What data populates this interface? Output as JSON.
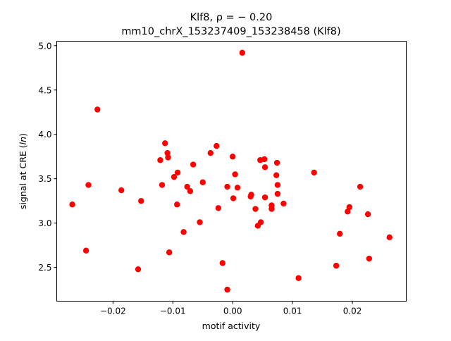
{
  "chart_data": {
    "type": "scatter",
    "title_line1": "Klf8, ρ = − 0.20",
    "title_line2": "mm10_chrX_153237409_153238458 (Klf8)",
    "xlabel": "motif activity",
    "ylabel": "signal at CRE (ln)",
    "xlim": [
      -0.0294,
      0.029
    ],
    "ylim": [
      2.12,
      5.05
    ],
    "xticks": [
      -0.02,
      -0.01,
      0.0,
      0.01,
      0.02
    ],
    "xtick_labels": [
      "−0.02",
      "−0.01",
      "0.00",
      "0.01",
      "0.02"
    ],
    "yticks": [
      2.5,
      3.0,
      3.5,
      4.0,
      4.5,
      5.0
    ],
    "ytick_labels": [
      "2.5",
      "3.0",
      "3.5",
      "4.0",
      "4.5",
      "5.0"
    ],
    "grid": false,
    "marker_color": "#ff0000",
    "points": [
      [
        -0.0268,
        3.21
      ],
      [
        -0.0245,
        2.69
      ],
      [
        -0.0241,
        3.43
      ],
      [
        -0.0226,
        4.28
      ],
      [
        -0.0186,
        3.37
      ],
      [
        -0.0158,
        2.48
      ],
      [
        -0.0153,
        3.25
      ],
      [
        -0.0121,
        3.71
      ],
      [
        -0.0118,
        3.43
      ],
      [
        -0.0113,
        3.9
      ],
      [
        -0.0109,
        3.79
      ],
      [
        -0.0108,
        3.74
      ],
      [
        -0.0106,
        2.67
      ],
      [
        -0.0098,
        3.52
      ],
      [
        -0.0093,
        3.21
      ],
      [
        -0.0092,
        3.57
      ],
      [
        -0.0082,
        2.9
      ],
      [
        -0.0076,
        3.41
      ],
      [
        -0.0071,
        3.36
      ],
      [
        -0.0066,
        3.66
      ],
      [
        -0.0055,
        3.01
      ],
      [
        -0.005,
        3.46
      ],
      [
        -0.0037,
        3.79
      ],
      [
        -0.0027,
        3.87
      ],
      [
        -0.0024,
        3.17
      ],
      [
        -0.0017,
        2.55
      ],
      [
        -0.0009,
        2.25
      ],
      [
        -0.0009,
        3.41
      ],
      [
        0.0,
        3.75
      ],
      [
        0.0001,
        3.28
      ],
      [
        0.0004,
        3.55
      ],
      [
        0.0008,
        3.4
      ],
      [
        0.0016,
        4.92
      ],
      [
        0.003,
        3.3
      ],
      [
        0.0031,
        3.32
      ],
      [
        0.0038,
        3.16
      ],
      [
        0.0042,
        2.97
      ],
      [
        0.0046,
        3.71
      ],
      [
        0.0047,
        3.01
      ],
      [
        0.0053,
        3.72
      ],
      [
        0.0054,
        3.63
      ],
      [
        0.0054,
        3.29
      ],
      [
        0.0065,
        3.2
      ],
      [
        0.0065,
        3.16
      ],
      [
        0.0073,
        3.54
      ],
      [
        0.0074,
        3.68
      ],
      [
        0.0075,
        3.43
      ],
      [
        0.0075,
        3.33
      ],
      [
        0.0085,
        3.22
      ],
      [
        0.011,
        2.38
      ],
      [
        0.0136,
        3.57
      ],
      [
        0.0173,
        2.52
      ],
      [
        0.0179,
        2.88
      ],
      [
        0.0192,
        3.13
      ],
      [
        0.0195,
        3.18
      ],
      [
        0.0213,
        3.41
      ],
      [
        0.0226,
        3.1
      ],
      [
        0.0228,
        2.6
      ],
      [
        0.0262,
        2.84
      ]
    ]
  }
}
